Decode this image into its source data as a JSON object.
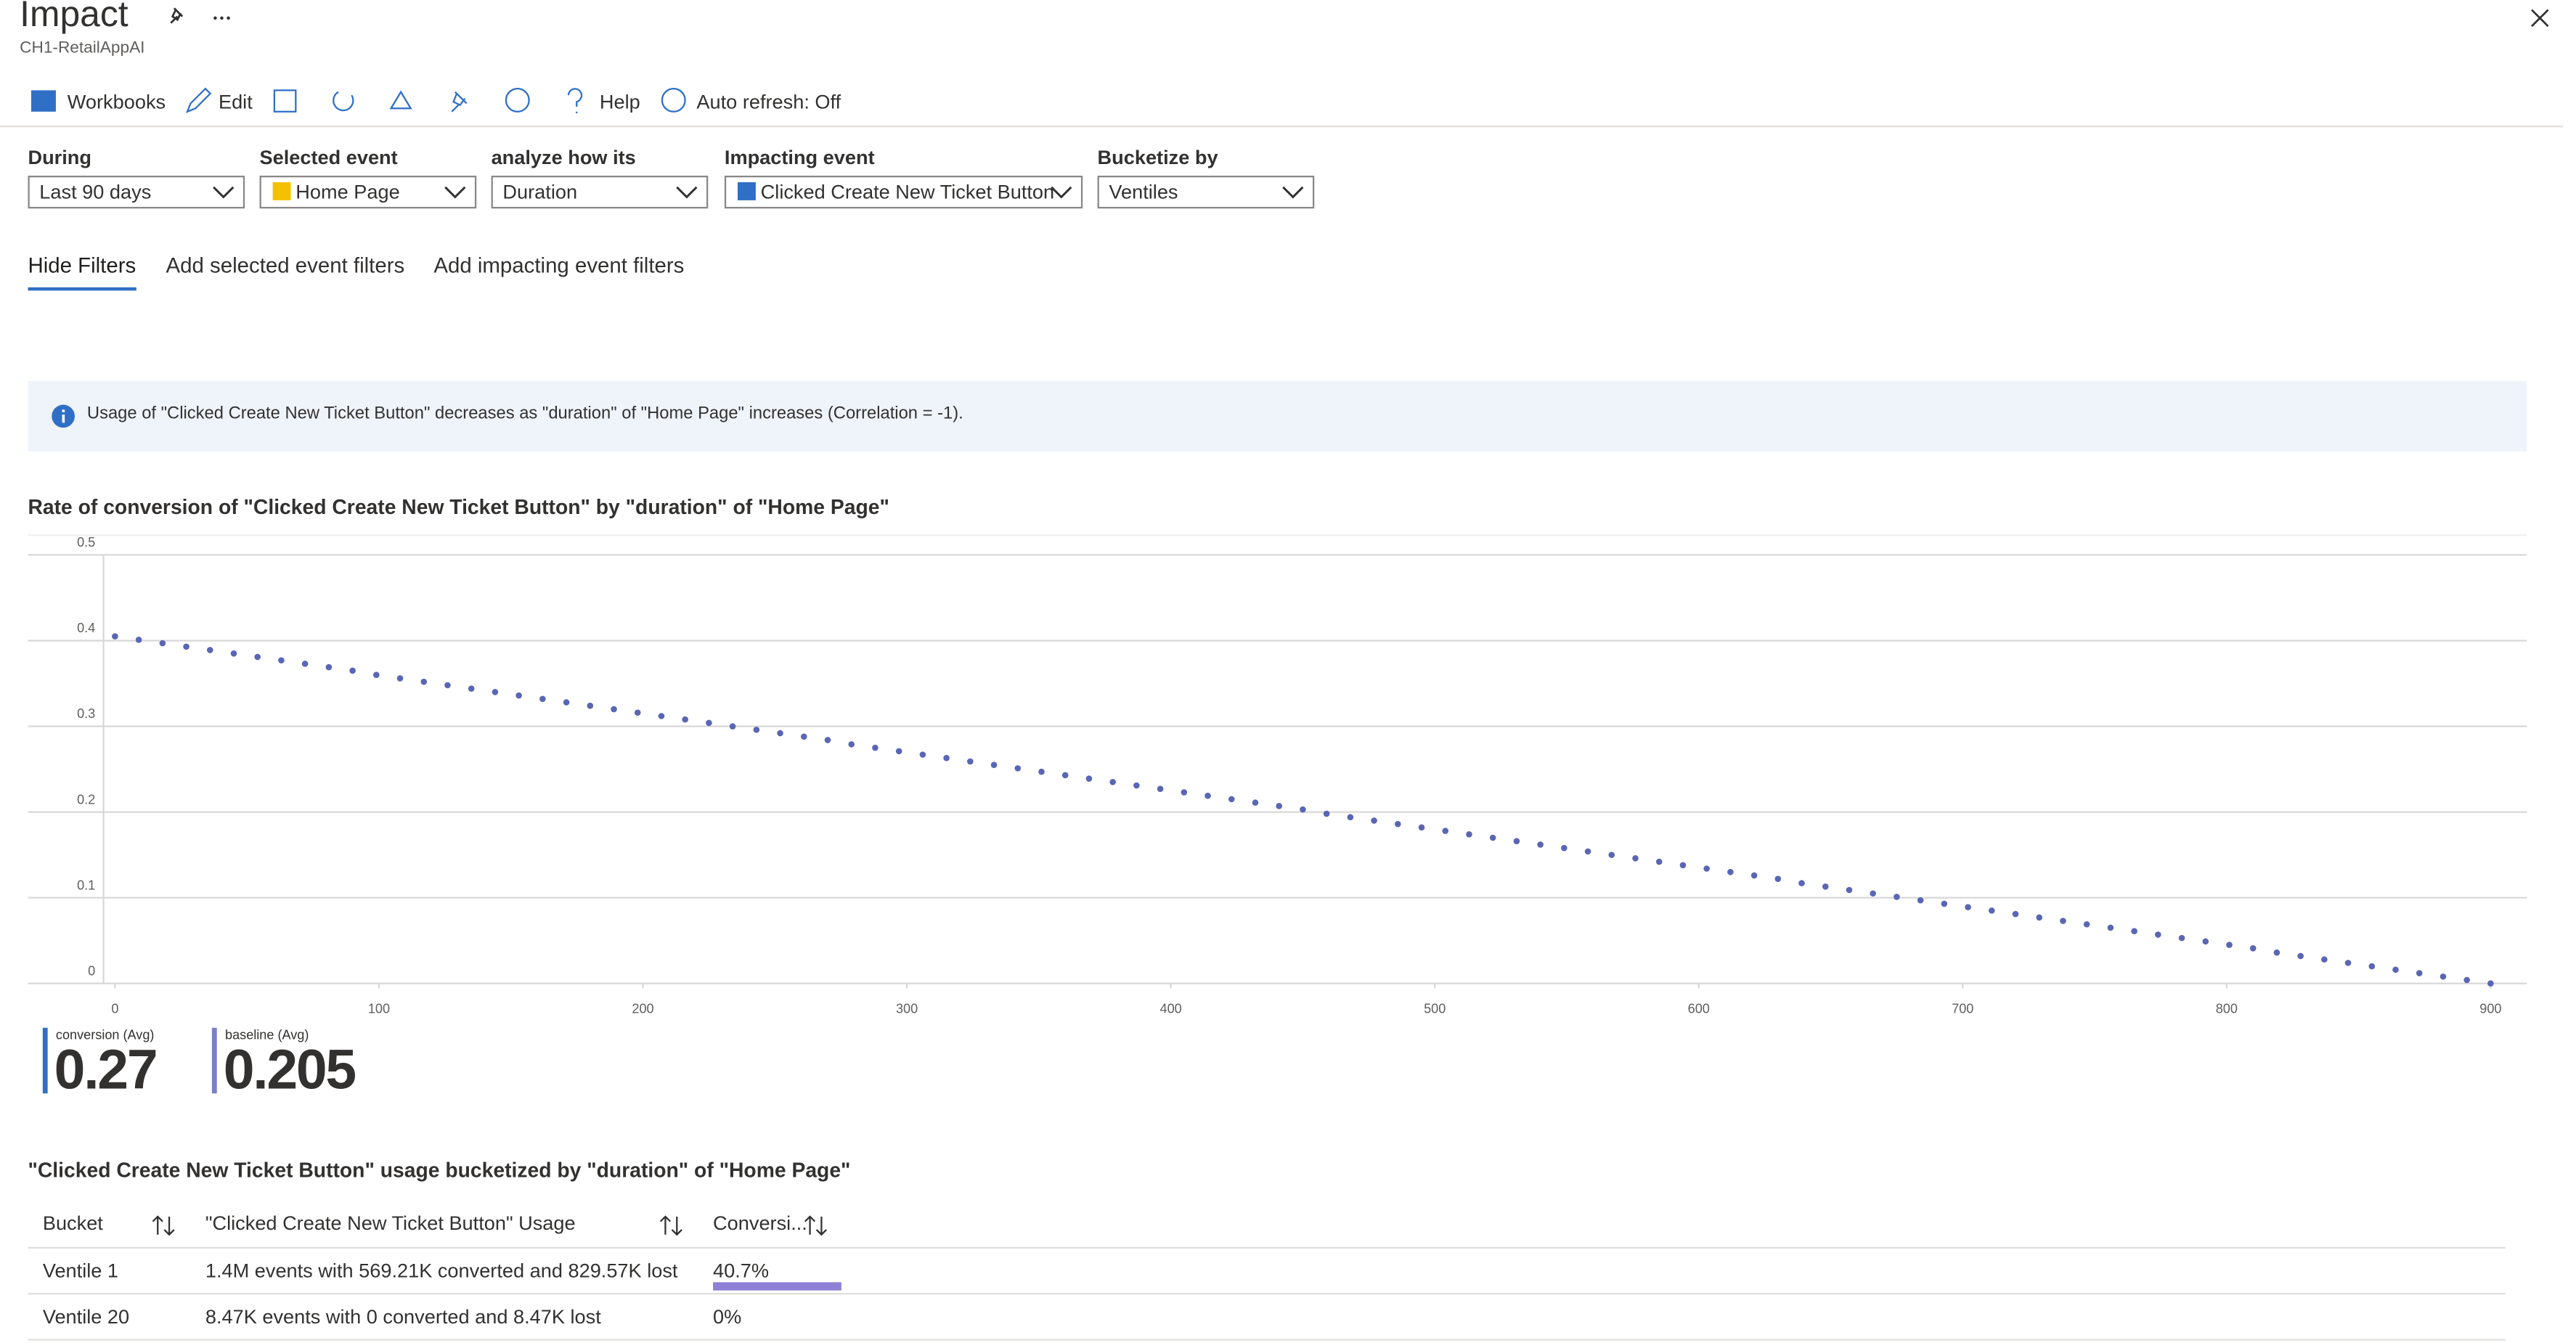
{
  "header": {
    "title": "Impact",
    "subtitle": "CH1-RetailAppAI"
  },
  "toolbar": [
    "Workbooks",
    "Edit",
    "Help",
    "Auto refresh: Off"
  ],
  "filters": [
    {
      "label": "During",
      "value": "Last 90 days"
    },
    {
      "label": "Selected event",
      "value": "Home Page"
    },
    {
      "label": "analyze how its",
      "value": "Duration"
    },
    {
      "label": "Impacting event",
      "value": "Clicked Create New Ticket Button"
    },
    {
      "label": "Bucketize by",
      "value": "Ventiles"
    }
  ],
  "tabs": [
    "Hide Filters",
    "Add selected event filters",
    "Add impacting event filters"
  ],
  "info": "Usage of \"Clicked Create New Ticket Button\" decreases as \"duration\" of \"Home Page\" increases (Correlation = -1).",
  "chart_data": {
    "type": "scatter",
    "title": "Rate of conversion of \"Clicked Create New Ticket Button\" by \"duration\" of \"Home Page\"",
    "x": [
      0,
      9,
      18,
      27,
      36,
      45,
      54,
      63,
      72,
      81,
      90,
      99,
      108,
      117,
      126,
      135,
      144,
      153,
      162,
      171,
      180,
      189,
      198,
      207,
      216,
      225,
      234,
      243,
      252,
      261,
      270,
      279,
      288,
      297,
      306,
      315,
      324,
      333,
      342,
      351,
      360,
      369,
      378,
      387,
      396,
      405,
      414,
      423,
      432,
      441,
      450,
      459,
      468,
      477,
      486,
      495,
      504,
      513,
      522,
      531,
      540,
      549,
      558,
      567,
      576,
      585,
      594,
      603,
      612,
      621,
      630,
      639,
      648,
      657,
      666,
      675,
      684,
      693,
      702,
      711,
      720,
      729,
      738,
      747,
      756,
      765,
      774,
      783,
      792,
      801,
      810,
      819,
      828,
      837,
      846,
      855,
      864,
      873,
      882,
      891,
      900
    ],
    "values": [
      0.405,
      0.401,
      0.397,
      0.393,
      0.389,
      0.385,
      0.381,
      0.377,
      0.373,
      0.369,
      0.365,
      0.36,
      0.356,
      0.352,
      0.348,
      0.344,
      0.34,
      0.336,
      0.332,
      0.328,
      0.324,
      0.32,
      0.316,
      0.312,
      0.308,
      0.304,
      0.3,
      0.296,
      0.292,
      0.288,
      0.284,
      0.279,
      0.275,
      0.271,
      0.267,
      0.263,
      0.259,
      0.255,
      0.251,
      0.247,
      0.243,
      0.239,
      0.235,
      0.231,
      0.227,
      0.223,
      0.219,
      0.215,
      0.211,
      0.207,
      0.203,
      0.198,
      0.194,
      0.19,
      0.186,
      0.182,
      0.178,
      0.174,
      0.17,
      0.166,
      0.162,
      0.158,
      0.154,
      0.15,
      0.146,
      0.142,
      0.138,
      0.134,
      0.13,
      0.126,
      0.122,
      0.117,
      0.113,
      0.109,
      0.105,
      0.101,
      0.097,
      0.093,
      0.089,
      0.085,
      0.081,
      0.077,
      0.073,
      0.069,
      0.065,
      0.061,
      0.057,
      0.053,
      0.049,
      0.045,
      0.041,
      0.036,
      0.032,
      0.028,
      0.024,
      0.02,
      0.016,
      0.012,
      0.008,
      0.004,
      0
    ],
    "color": "#5a66b4",
    "xlim": [
      -4,
      913
    ],
    "ylim": [
      0,
      0.5
    ],
    "xticks": [
      0,
      100,
      200,
      300,
      400,
      500,
      600,
      700,
      800,
      900
    ],
    "yticks": [
      0,
      0.1,
      0.2,
      0.3,
      0.4,
      0.5
    ],
    "grid": true
  },
  "summary": [
    {
      "name": "conversion (Avg)",
      "value": 0.27,
      "color": "#2f6fc6"
    },
    {
      "name": "baseline (Avg)",
      "value": 0.205,
      "color": "#7b7fc8"
    }
  ],
  "table": {
    "title": "\"Clicked Create New Ticket Button\" usage bucketized by \"duration\" of \"Home Page\"",
    "columns": [
      "Bucket",
      "\"Clicked Create New Ticket Button\" Usage",
      "Conversi..."
    ],
    "rows": [
      [
        "Ventile 1",
        "1.4M events with 569.21K converted and 829.57K lost",
        {
          "value": 40.7,
          "label": "40.7%"
        }
      ],
      [
        "Ventile 20",
        "8.47K events with 0 converted and 8.47K lost",
        {
          "value": 0,
          "label": "0%"
        }
      ]
    ],
    "bar_color": "#8e80d6"
  }
}
